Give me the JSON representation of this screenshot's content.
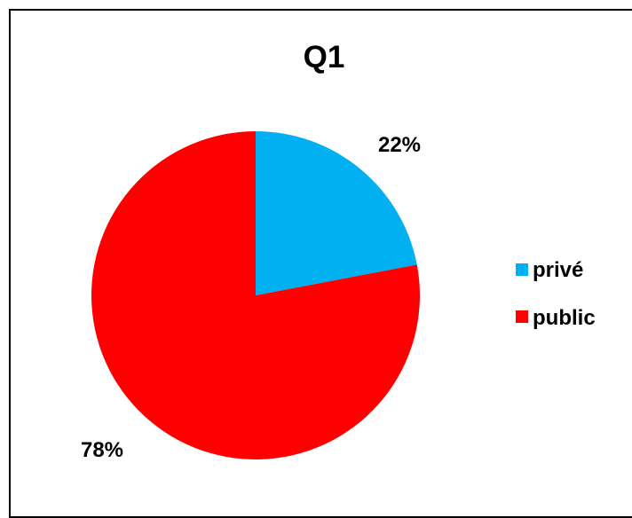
{
  "chart_data": {
    "type": "pie",
    "title": "Q1",
    "categories": [
      "privé",
      "public"
    ],
    "values": [
      22,
      78
    ],
    "data_labels": [
      "22%",
      "78%"
    ],
    "colors": [
      "#00b0f0",
      "#ff0000"
    ],
    "legend_position": "right"
  }
}
